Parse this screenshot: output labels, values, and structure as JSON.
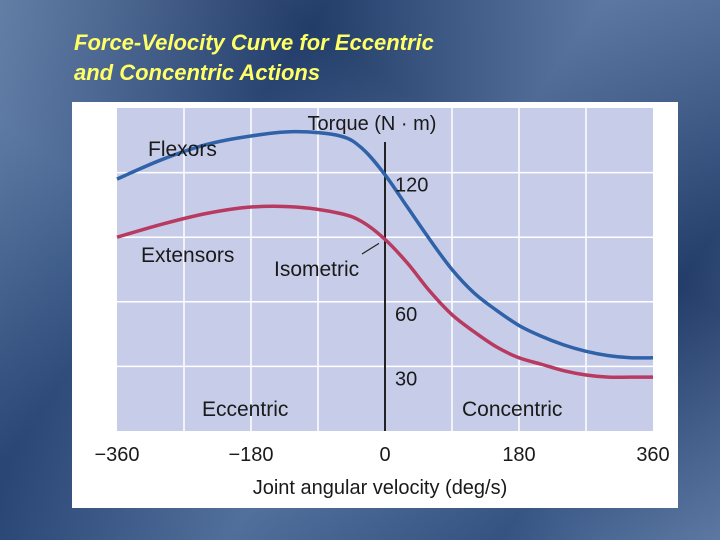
{
  "slide": {
    "title_line1": "Force-Velocity Curve for Eccentric",
    "title_line2": "and Concentric Actions",
    "title_color": "#ffff66"
  },
  "chart_data": {
    "type": "line",
    "ylabel": "Torque (N · m)",
    "xlabel": "Joint angular velocity (deg/s)",
    "x_ticks": [
      -360,
      -180,
      0,
      180,
      360
    ],
    "x_tick_labels": [
      "−360",
      "−180",
      "0",
      "180",
      "360"
    ],
    "y_ticks": [
      120,
      60,
      30
    ],
    "y_tick_labels": [
      "120",
      "60",
      "30"
    ],
    "annotations": {
      "isometric": "Isometric",
      "eccentric": "Eccentric",
      "concentric": "Concentric"
    },
    "colors": {
      "plot_background": "#c7cde8",
      "grid": "#ffffff",
      "axis": "#222222"
    },
    "series": [
      {
        "name": "Flexors",
        "color": "#2f62a8",
        "x": [
          -360,
          -300,
          -240,
          -180,
          -120,
          -60,
          -30,
          0,
          30,
          60,
          90,
          120,
          150,
          180,
          210,
          240,
          270,
          300,
          330,
          360
        ],
        "y": [
          117,
          126,
          133,
          137,
          139,
          137,
          131,
          119,
          104,
          89,
          75,
          64,
          56,
          49,
          44,
          40,
          37,
          35,
          34,
          34
        ]
      },
      {
        "name": "Extensors",
        "color": "#b83a60",
        "x": [
          -360,
          -300,
          -240,
          -180,
          -120,
          -60,
          -30,
          0,
          30,
          60,
          90,
          120,
          150,
          180,
          210,
          240,
          270,
          300,
          330,
          360
        ],
        "y": [
          90,
          96,
          101,
          104,
          104,
          101,
          97,
          89,
          78,
          65,
          54,
          46,
          39,
          34,
          31,
          28,
          26,
          25,
          25,
          25
        ]
      }
    ]
  }
}
